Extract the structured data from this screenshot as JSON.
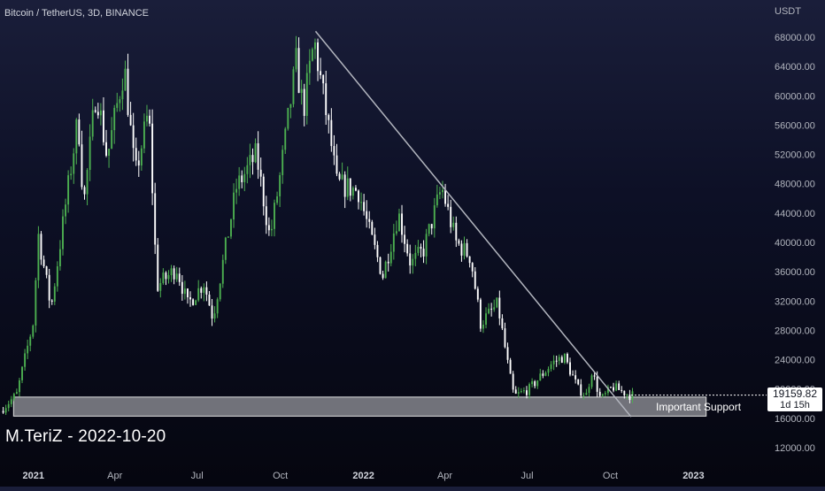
{
  "header": {
    "symbol_title": "Bitcoin / TetherUS, 3D, BINANCE"
  },
  "watermark": "M.TeriZ - 2022-10-20",
  "price_tag": {
    "price": "19159.82",
    "countdown": "1d 15h"
  },
  "annotation": {
    "support_label": "Important Support"
  },
  "colors": {
    "up_candle": "#4caf50",
    "down_candle": "#ffffff",
    "trendline": "#b2b5be",
    "support_zone_fill": "rgba(200,200,205,0.55)",
    "axis_text": "#b2b5be"
  },
  "chart_data": {
    "type": "candlestick",
    "title": "Bitcoin / TetherUS, 3D, BINANCE",
    "ylabel": "USDT",
    "ylim": [
      10000,
      72000
    ],
    "y_ticks": [
      12000,
      16000,
      20000,
      24000,
      28000,
      32000,
      36000,
      40000,
      44000,
      48000,
      52000,
      56000,
      60000,
      64000,
      68000
    ],
    "y_tick_labels": [
      "12000.00",
      "16000.00",
      "20000.00",
      "24000.00",
      "28000.00",
      "32000.00",
      "36000.00",
      "40000.00",
      "44000.00",
      "48000.00",
      "52000.00",
      "56000.00",
      "60000.00",
      "64000.00",
      "68000.00"
    ],
    "x_ticks": [
      "2021",
      "Apr",
      "Jul",
      "Oct",
      "2022",
      "Apr",
      "Jul",
      "Oct",
      "2023"
    ],
    "x_tick_dates": [
      "2021-01-01",
      "2021-04-01",
      "2021-07-01",
      "2021-10-01",
      "2022-01-01",
      "2022-04-01",
      "2022-07-01",
      "2022-10-01",
      "2023-01-01"
    ],
    "x_range": [
      "2020-11-25",
      "2023-03-15"
    ],
    "last_price": 19159.82,
    "trendline": {
      "start": [
        "2021-11-09",
        68800
      ],
      "end": [
        "2022-10-24",
        16200
      ]
    },
    "support_zone": {
      "start": "2020-12-10",
      "end": "2023-01-15",
      "low": 16300,
      "high": 18900
    },
    "price_path": [
      [
        "2020-11-27",
        17000
      ],
      [
        "2020-12-15",
        19300
      ],
      [
        "2021-01-02",
        29000
      ],
      [
        "2021-01-08",
        41000
      ],
      [
        "2021-01-22",
        31000
      ],
      [
        "2021-02-08",
        46000
      ],
      [
        "2021-02-21",
        57000
      ],
      [
        "2021-02-27",
        45000
      ],
      [
        "2021-03-13",
        61000
      ],
      [
        "2021-03-25",
        51500
      ],
      [
        "2021-04-13",
        64000
      ],
      [
        "2021-04-25",
        49000
      ],
      [
        "2021-05-10",
        58000
      ],
      [
        "2021-05-19",
        34000
      ],
      [
        "2021-06-10",
        36500
      ],
      [
        "2021-06-22",
        31500
      ],
      [
        "2021-07-10",
        34500
      ],
      [
        "2021-07-20",
        29700
      ],
      [
        "2021-08-15",
        47500
      ],
      [
        "2021-09-06",
        52000
      ],
      [
        "2021-09-21",
        40500
      ],
      [
        "2021-10-01",
        48000
      ],
      [
        "2021-10-20",
        64500
      ],
      [
        "2021-10-28",
        58000
      ],
      [
        "2021-11-09",
        67500
      ],
      [
        "2021-11-27",
        54000
      ],
      [
        "2021-12-04",
        48000
      ],
      [
        "2021-12-28",
        47000
      ],
      [
        "2022-01-10",
        41000
      ],
      [
        "2022-01-24",
        35500
      ],
      [
        "2022-02-10",
        44000
      ],
      [
        "2022-02-24",
        37000
      ],
      [
        "2022-03-10",
        39000
      ],
      [
        "2022-03-30",
        47500
      ],
      [
        "2022-04-15",
        40000
      ],
      [
        "2022-05-01",
        38000
      ],
      [
        "2022-05-12",
        29000
      ],
      [
        "2022-05-31",
        31500
      ],
      [
        "2022-06-13",
        22000
      ],
      [
        "2022-06-18",
        19000
      ],
      [
        "2022-07-05",
        20000
      ],
      [
        "2022-07-30",
        23500
      ],
      [
        "2022-08-12",
        24500
      ],
      [
        "2022-08-28",
        20000
      ],
      [
        "2022-09-06",
        19200
      ],
      [
        "2022-09-12",
        22500
      ],
      [
        "2022-09-22",
        18500
      ],
      [
        "2022-10-05",
        20300
      ],
      [
        "2022-10-24",
        19160
      ]
    ]
  }
}
